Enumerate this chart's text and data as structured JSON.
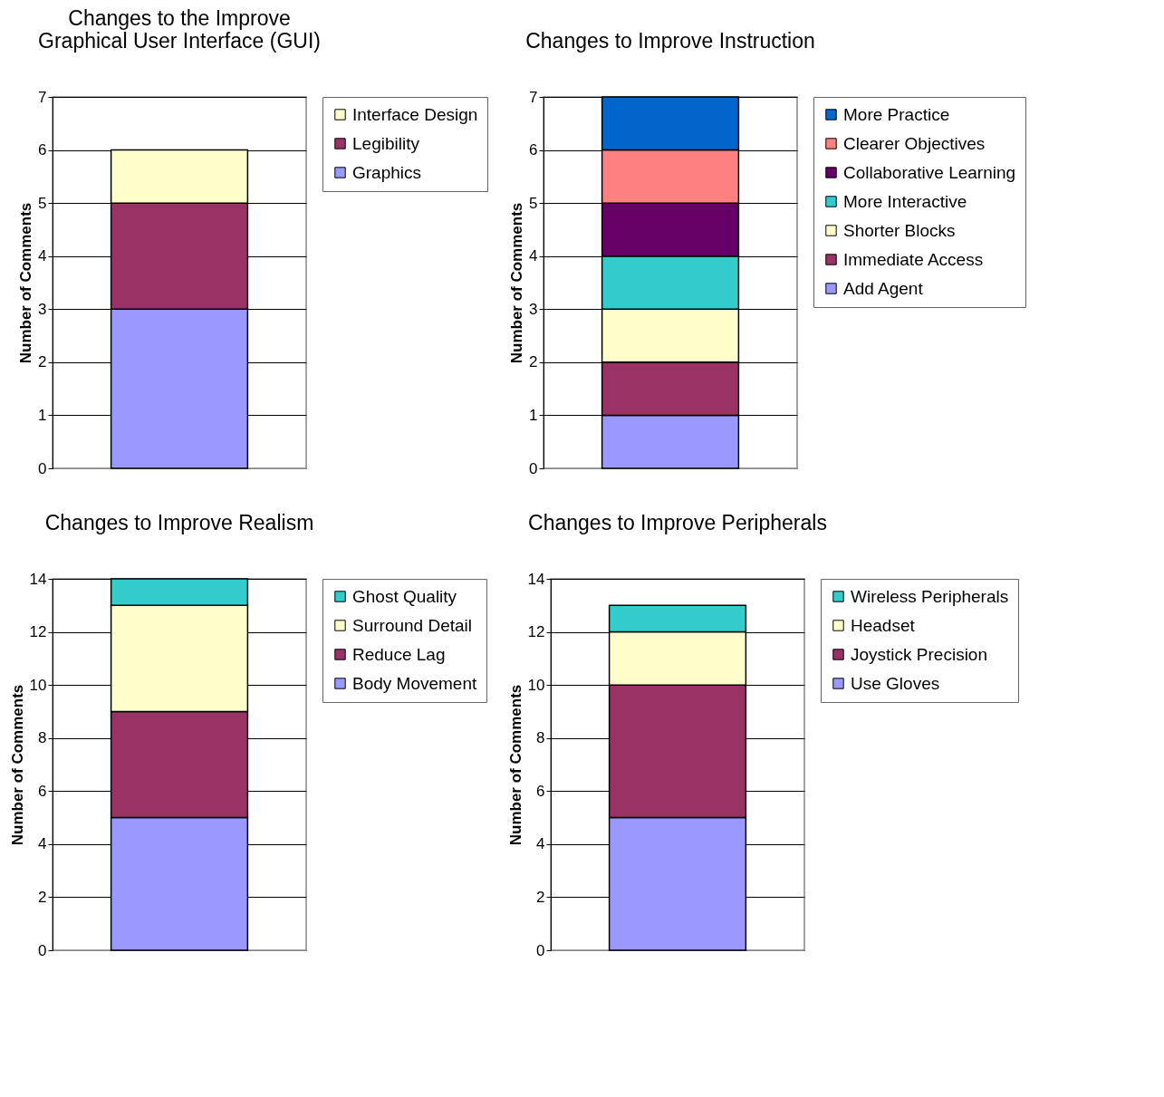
{
  "chart_data": [
    {
      "type": "bar",
      "title": "Changes to the Improve Graphical User Interface (GUI)",
      "ylabel": "Number of Comments",
      "categories": [
        null
      ],
      "stacked": true,
      "ylim": [
        0,
        7
      ],
      "yticks": [
        0,
        1,
        2,
        3,
        4,
        5,
        6,
        7
      ],
      "grid": "y",
      "legend": "right",
      "tick_labels": "y",
      "series": [
        {
          "name": "Graphics",
          "color": "#9999ff",
          "values": [
            3
          ]
        },
        {
          "name": "Legibility",
          "color": "#993366",
          "values": [
            2
          ]
        },
        {
          "name": "Interface Design",
          "color": "#ffffcc",
          "values": [
            1
          ]
        }
      ]
    },
    {
      "type": "bar",
      "title": "Changes to Improve Instruction",
      "ylabel": "Number of Comments",
      "categories": [
        null
      ],
      "stacked": true,
      "ylim": [
        0,
        7
      ],
      "yticks": [
        0,
        1,
        2,
        3,
        4,
        5,
        6,
        7
      ],
      "grid": "y",
      "legend": "right",
      "tick_labels": "y",
      "series": [
        {
          "name": "Add Agent",
          "color": "#9999ff",
          "values": [
            1
          ]
        },
        {
          "name": "Immediate Access",
          "color": "#993366",
          "values": [
            1
          ]
        },
        {
          "name": "Shorter Blocks",
          "color": "#ffffcc",
          "values": [
            1
          ]
        },
        {
          "name": "More Interactive",
          "color": "#33cccc",
          "values": [
            1
          ]
        },
        {
          "name": "Collaborative Learning",
          "color": "#660066",
          "values": [
            1
          ]
        },
        {
          "name": "Clearer Objectives",
          "color": "#ff8080",
          "values": [
            1
          ]
        },
        {
          "name": "More Practice",
          "color": "#0066cc",
          "values": [
            1
          ]
        }
      ]
    },
    {
      "type": "bar",
      "title": "Changes to Improve Realism",
      "ylabel": "Number of Comments",
      "categories": [
        null
      ],
      "stacked": true,
      "ylim": [
        0,
        14
      ],
      "yticks": [
        0,
        2,
        4,
        6,
        8,
        10,
        12,
        14
      ],
      "grid": "y",
      "legend": "right",
      "tick_labels": "y",
      "series": [
        {
          "name": "Body Movement",
          "color": "#9999ff",
          "values": [
            5
          ]
        },
        {
          "name": "Reduce Lag",
          "color": "#993366",
          "values": [
            4
          ]
        },
        {
          "name": "Surround Detail",
          "color": "#ffffcc",
          "values": [
            4
          ]
        },
        {
          "name": "Ghost Quality",
          "color": "#33cccc",
          "values": [
            1
          ]
        }
      ]
    },
    {
      "type": "bar",
      "title": "Changes to Improve Peripherals",
      "ylabel": "Number of Comments",
      "categories": [
        null
      ],
      "stacked": true,
      "ylim": [
        0,
        14
      ],
      "yticks": [
        0,
        2,
        4,
        6,
        8,
        10,
        12,
        14
      ],
      "grid": "y",
      "legend": "right",
      "tick_labels": "y",
      "series": [
        {
          "name": "Use Gloves",
          "color": "#9999ff",
          "values": [
            5
          ]
        },
        {
          "name": "Joystick Precision",
          "color": "#993366",
          "values": [
            5
          ]
        },
        {
          "name": "Headset",
          "color": "#ffffcc",
          "values": [
            2
          ]
        },
        {
          "name": "Wireless Peripherals",
          "color": "#33cccc",
          "values": [
            1
          ]
        }
      ]
    }
  ]
}
